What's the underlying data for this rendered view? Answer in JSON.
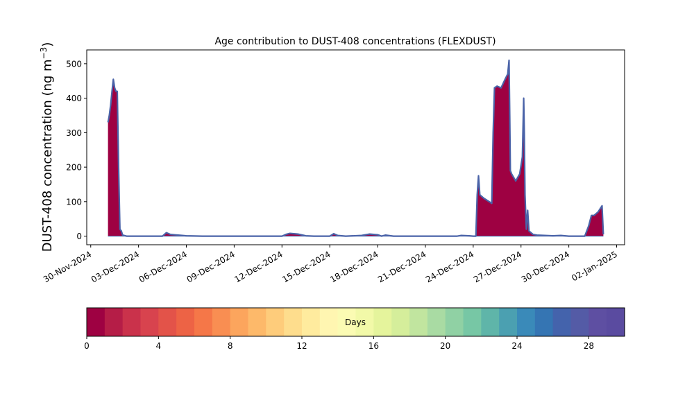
{
  "chart_data": {
    "type": "area",
    "title": "Age contribution to DUST-408 concentrations (FLEXDUST)",
    "ylabel": "DUST-408 concentration (ng m",
    "ylabel_sup": "−3",
    "ylabel_close": ")",
    "x_start": "2024-11-29T18:00",
    "x_end": "2025-01-02T12:00",
    "ylim": [
      -25,
      540
    ],
    "y_ticks": [
      0,
      100,
      200,
      300,
      400,
      500
    ],
    "x_ticks": [
      {
        "date": "2024-11-30",
        "label": "30-Nov-2024"
      },
      {
        "date": "2024-12-03",
        "label": "03-Dec-2024"
      },
      {
        "date": "2024-12-06",
        "label": "06-Dec-2024"
      },
      {
        "date": "2024-12-09",
        "label": "09-Dec-2024"
      },
      {
        "date": "2024-12-12",
        "label": "12-Dec-2024"
      },
      {
        "date": "2024-12-15",
        "label": "15-Dec-2024"
      },
      {
        "date": "2024-12-18",
        "label": "18-Dec-2024"
      },
      {
        "date": "2024-12-21",
        "label": "21-Dec-2024"
      },
      {
        "date": "2024-12-24",
        "label": "24-Dec-2024"
      },
      {
        "date": "2024-12-27",
        "label": "27-Dec-2024"
      },
      {
        "date": "2024-12-30",
        "label": "30-Dec-2024"
      },
      {
        "date": "2025-01-02",
        "label": "02-Jan-2025"
      }
    ],
    "grid": false,
    "series_total_color": "#4a63a8",
    "age0_color": "#9e0142",
    "total_series": [
      [
        "2024-12-01T02:00",
        330
      ],
      [
        "2024-12-01T04:00",
        350
      ],
      [
        "2024-12-01T06:00",
        380
      ],
      [
        "2024-12-01T08:00",
        420
      ],
      [
        "2024-12-01T10:00",
        455
      ],
      [
        "2024-12-01T12:00",
        430
      ],
      [
        "2024-12-01T14:00",
        420
      ],
      [
        "2024-12-01T16:00",
        420
      ],
      [
        "2024-12-01T18:00",
        200
      ],
      [
        "2024-12-01T20:00",
        20
      ],
      [
        "2024-12-01T22:00",
        15
      ],
      [
        "2024-12-02T00:00",
        3
      ],
      [
        "2024-12-02T06:00",
        0
      ],
      [
        "2024-12-04T00:00",
        0
      ],
      [
        "2024-12-04T12:00",
        0
      ],
      [
        "2024-12-04T18:00",
        10
      ],
      [
        "2024-12-05T00:00",
        5
      ],
      [
        "2024-12-05T12:00",
        3
      ],
      [
        "2024-12-06T00:00",
        1
      ],
      [
        "2024-12-07T00:00",
        0
      ],
      [
        "2024-12-12T00:00",
        0
      ],
      [
        "2024-12-12T06:00",
        5
      ],
      [
        "2024-12-12T12:00",
        8
      ],
      [
        "2024-12-13T00:00",
        6
      ],
      [
        "2024-12-13T12:00",
        1
      ],
      [
        "2024-12-14T00:00",
        0
      ],
      [
        "2024-12-15T00:00",
        0
      ],
      [
        "2024-12-15T06:00",
        7
      ],
      [
        "2024-12-15T12:00",
        2
      ],
      [
        "2024-12-16T00:00",
        0
      ],
      [
        "2024-12-17T00:00",
        2
      ],
      [
        "2024-12-17T12:00",
        6
      ],
      [
        "2024-12-18T00:00",
        4
      ],
      [
        "2024-12-18T06:00",
        0
      ],
      [
        "2024-12-18T12:00",
        3
      ],
      [
        "2024-12-19T00:00",
        0
      ],
      [
        "2024-12-23T00:00",
        0
      ],
      [
        "2024-12-23T06:00",
        2
      ],
      [
        "2024-12-23T18:00",
        1
      ],
      [
        "2024-12-24T00:00",
        0
      ],
      [
        "2024-12-24T04:00",
        0
      ],
      [
        "2024-12-24T06:00",
        120
      ],
      [
        "2024-12-24T08:00",
        175
      ],
      [
        "2024-12-24T10:00",
        120
      ],
      [
        "2024-12-24T16:00",
        110
      ],
      [
        "2024-12-25T00:00",
        100
      ],
      [
        "2024-12-25T04:00",
        95
      ],
      [
        "2024-12-25T06:00",
        300
      ],
      [
        "2024-12-25T08:00",
        430
      ],
      [
        "2024-12-25T12:00",
        435
      ],
      [
        "2024-12-25T18:00",
        430
      ],
      [
        "2024-12-26T00:00",
        455
      ],
      [
        "2024-12-26T04:00",
        470
      ],
      [
        "2024-12-26T06:00",
        510
      ],
      [
        "2024-12-26T07:00",
        350
      ],
      [
        "2024-12-26T08:00",
        190
      ],
      [
        "2024-12-26T10:00",
        180
      ],
      [
        "2024-12-26T16:00",
        160
      ],
      [
        "2024-12-26T22:00",
        180
      ],
      [
        "2024-12-27T02:00",
        230
      ],
      [
        "2024-12-27T04:00",
        400
      ],
      [
        "2024-12-27T05:00",
        300
      ],
      [
        "2024-12-27T06:00",
        120
      ],
      [
        "2024-12-27T08:00",
        20
      ],
      [
        "2024-12-27T10:00",
        75
      ],
      [
        "2024-12-27T12:00",
        15
      ],
      [
        "2024-12-27T18:00",
        5
      ],
      [
        "2024-12-28T00:00",
        3
      ],
      [
        "2024-12-29T00:00",
        1
      ],
      [
        "2024-12-29T12:00",
        2
      ],
      [
        "2024-12-30T00:00",
        0
      ],
      [
        "2024-12-31T00:00",
        0
      ],
      [
        "2024-12-31T06:00",
        30
      ],
      [
        "2024-12-31T10:00",
        60
      ],
      [
        "2024-12-31T14:00",
        60
      ],
      [
        "2024-12-31T20:00",
        70
      ],
      [
        "2025-01-01T02:00",
        88
      ],
      [
        "2025-01-01T04:00",
        5
      ]
    ],
    "legend": "colorbar-below",
    "colorbar": {
      "label": "Days",
      "min": 0,
      "max": 30,
      "bins": 30,
      "ticks": [
        0,
        4,
        8,
        12,
        16,
        20,
        24,
        28
      ],
      "colors": [
        "#9e0142",
        "#b51d47",
        "#ca324b",
        "#d8434e",
        "#e35349",
        "#ed6345",
        "#f57748",
        "#f98e52",
        "#fca55d",
        "#fdb96a",
        "#fecc7b",
        "#fedd8d",
        "#ffeb9e",
        "#fff6b1",
        "#fbfbb3",
        "#f2f9a8",
        "#e5f49c",
        "#d5ee9b",
        "#c1e59f",
        "#a9dba3",
        "#90d1a4",
        "#77c7a5",
        "#5fb5a9",
        "#4ba0b1",
        "#3a8ab9",
        "#3575b3",
        "#4463ac",
        "#545ba6",
        "#5e4fa2",
        "#5a4ba0"
      ]
    }
  }
}
